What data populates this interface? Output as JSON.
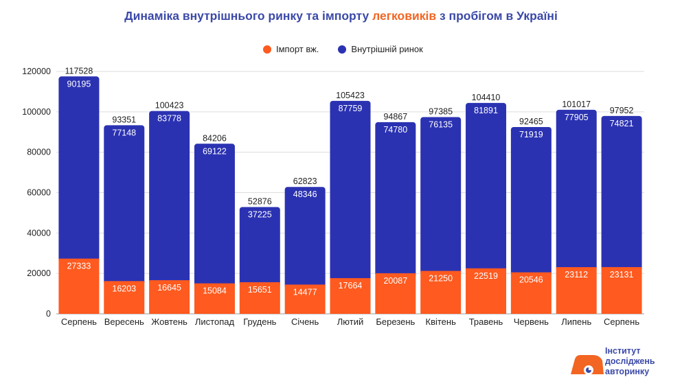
{
  "title": {
    "part1": "Динаміка внутрішнього ринку та імпорту ",
    "highlight": "легковиків",
    "part2": " з пробігом в Україні"
  },
  "colors": {
    "import": "#ff5a1f",
    "domestic": "#2b32b2",
    "title": "#3b49a8",
    "highlight": "#f26522",
    "grid": "#dcdcdc"
  },
  "logo": {
    "line1": "Інститут",
    "line2": "досліджень",
    "line3": "авторинку"
  },
  "chart_data": {
    "type": "bar",
    "stacked": true,
    "categories": [
      "Серпень",
      "Вересень",
      "Жовтень",
      "Листопад",
      "Грудень",
      "Січень",
      "Лютий",
      "Березень",
      "Квітень",
      "Травень",
      "Червень",
      "Липень",
      "Серпень"
    ],
    "series": [
      {
        "name": "Імпорт вж.",
        "color": "#ff5a1f",
        "values": [
          27333,
          16203,
          16645,
          15084,
          15651,
          14477,
          17664,
          20087,
          21250,
          22519,
          20546,
          23112,
          23131
        ]
      },
      {
        "name": "Внутрішній ринок",
        "color": "#2b32b2",
        "values": [
          90195,
          77148,
          83778,
          69122,
          37225,
          48346,
          87759,
          74780,
          76135,
          81891,
          71919,
          77905,
          74821
        ]
      }
    ],
    "totals": [
      117528,
      93351,
      100423,
      84206,
      52876,
      62823,
      105423,
      94867,
      97385,
      104410,
      92465,
      101017,
      97952
    ],
    "ylim": [
      0,
      120000
    ],
    "yticks": [
      0,
      20000,
      40000,
      60000,
      80000,
      100000,
      120000
    ],
    "grid": true,
    "legend_position": "top"
  }
}
